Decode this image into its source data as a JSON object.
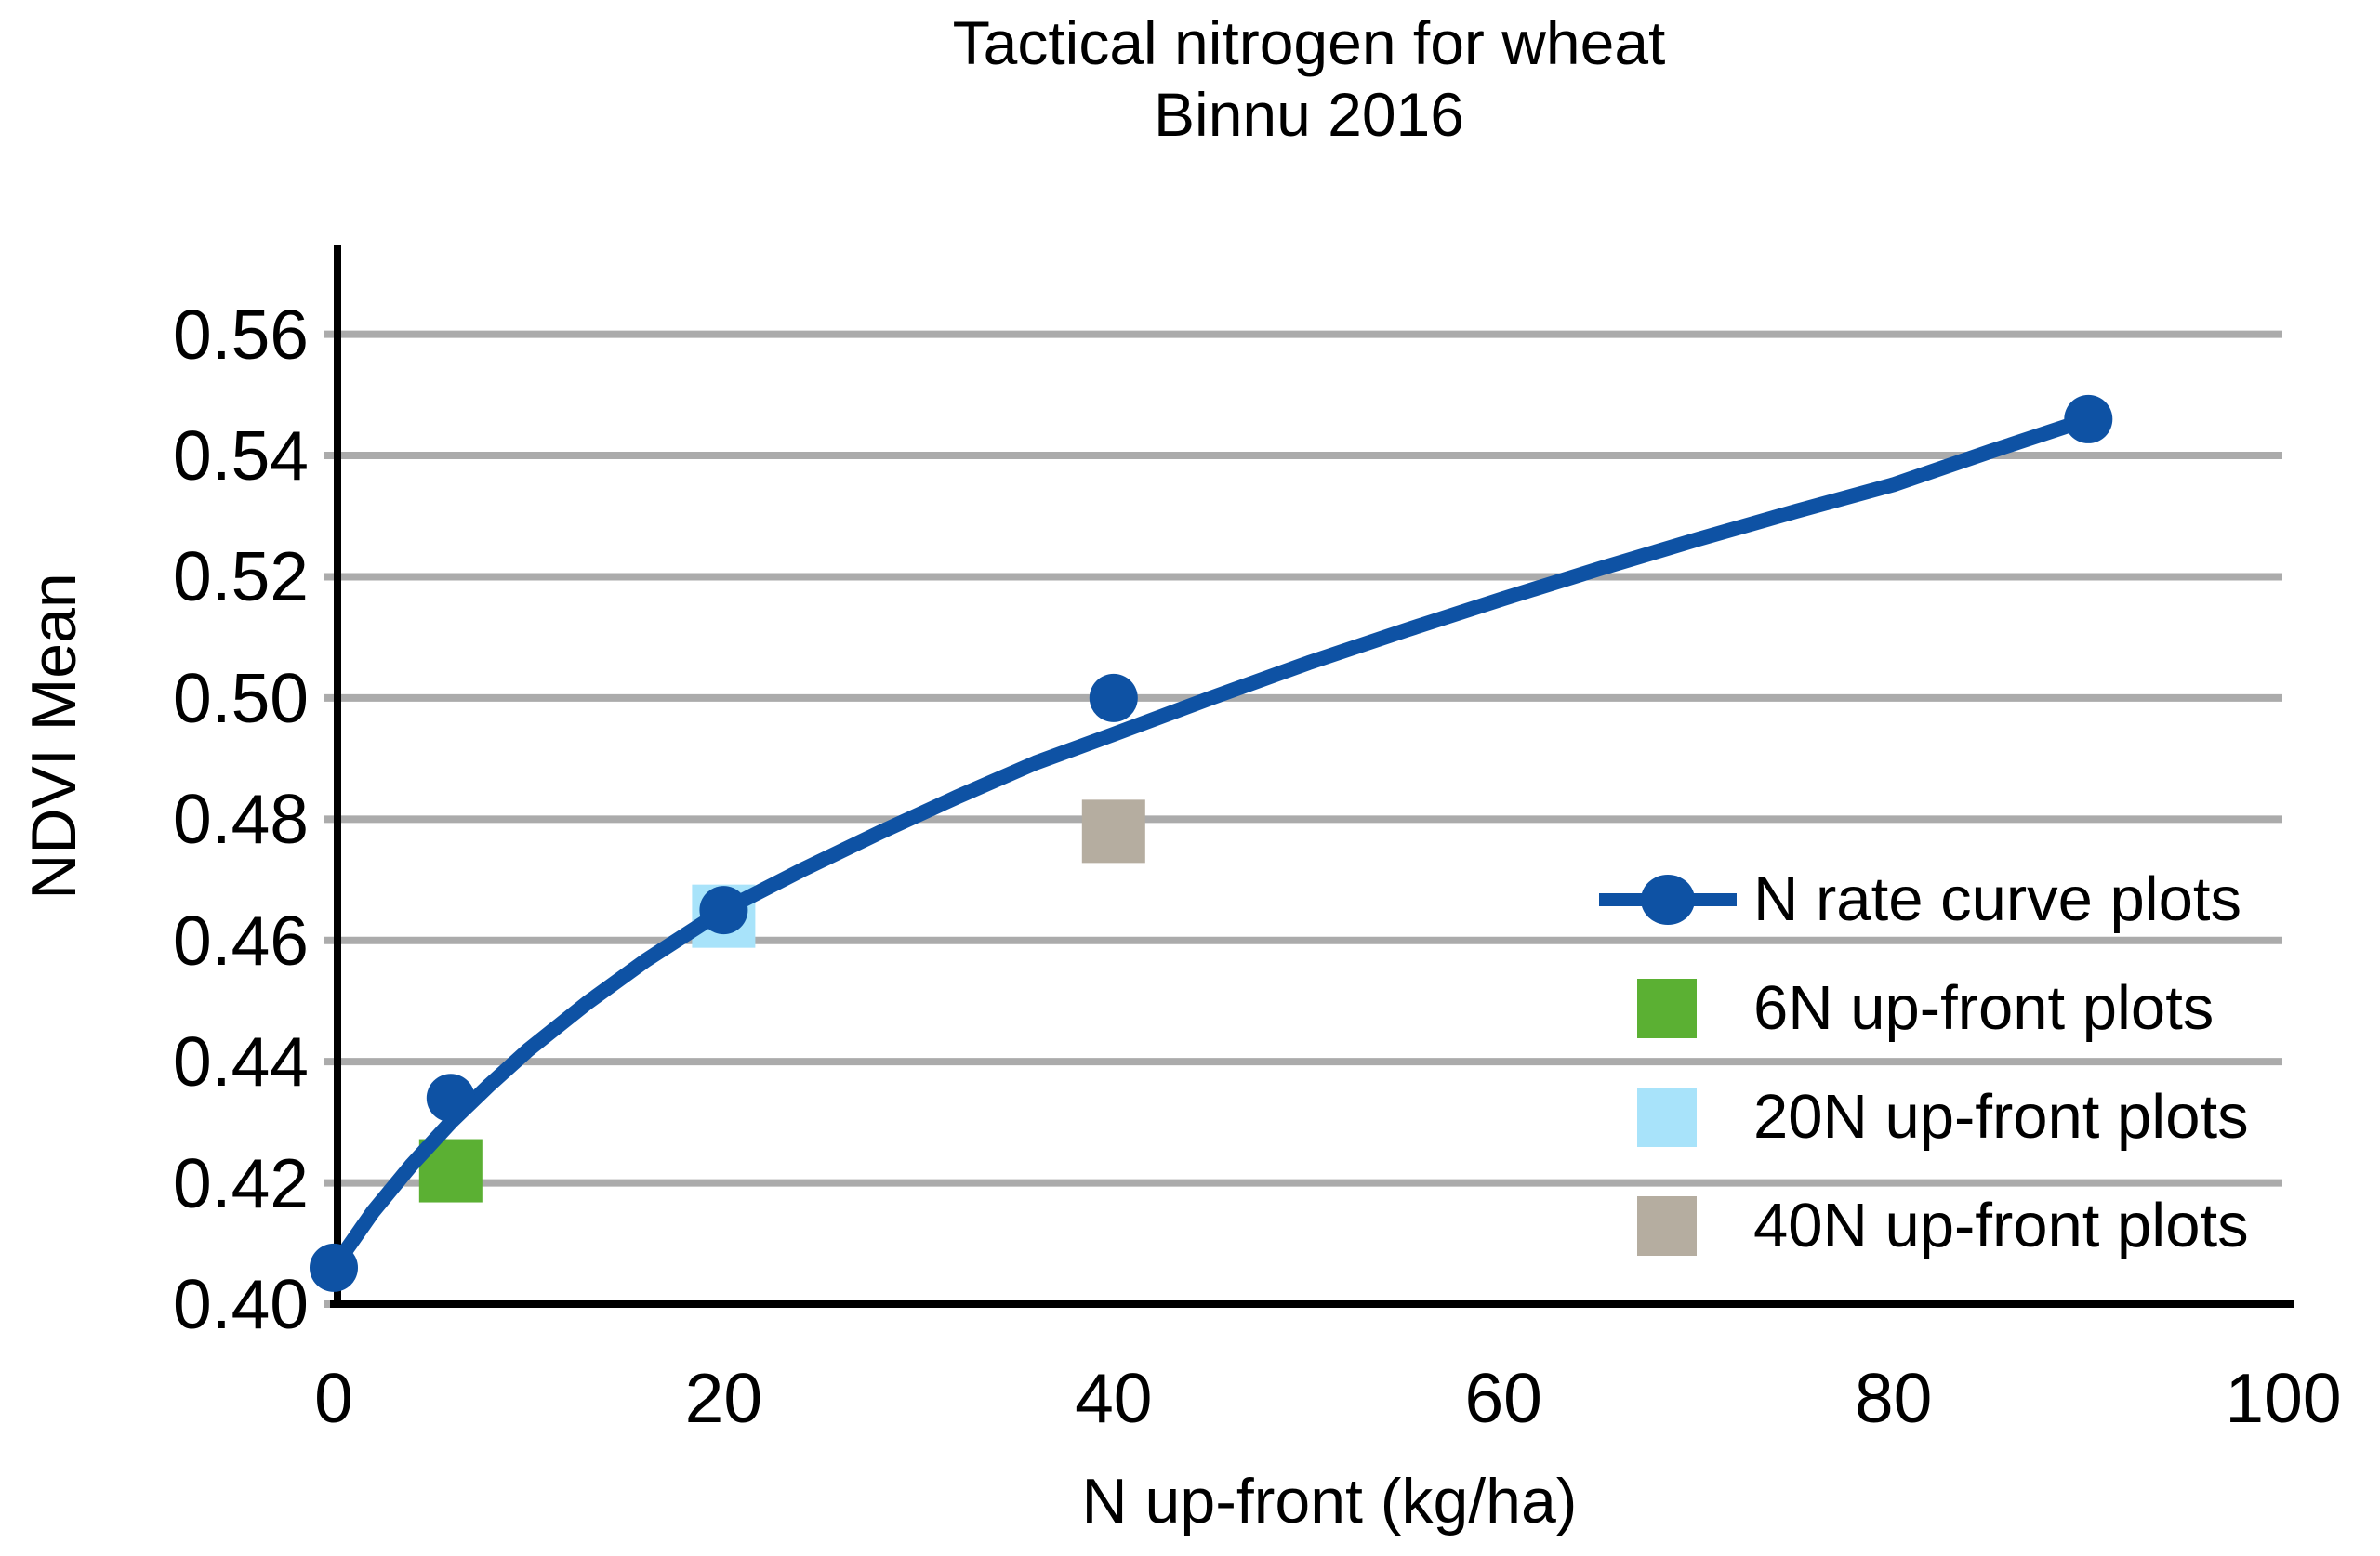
{
  "title": {
    "line1": "Tactical nitrogen for wheat",
    "line2": "Binnu 2016"
  },
  "chart_data": {
    "type": "scatter",
    "title": "Tactical nitrogen for wheat — Binnu 2016",
    "xlabel": "N up-front (kg/ha)",
    "ylabel": "NDVI Mean",
    "xlim": [
      0,
      100
    ],
    "ylim": [
      0.4,
      0.575
    ],
    "grid": "horizontal",
    "grid_color": "#ABABAB",
    "axis_color": "#000000",
    "legend_position": "inside-right",
    "x_ticks": [
      {
        "value": 0,
        "label": "0"
      },
      {
        "value": 20,
        "label": "20"
      },
      {
        "value": 40,
        "label": "40"
      },
      {
        "value": 60,
        "label": "60"
      },
      {
        "value": 80,
        "label": "80"
      },
      {
        "value": 100,
        "label": "100"
      }
    ],
    "y_ticks": [
      {
        "value": 0.4,
        "label": "0.40"
      },
      {
        "value": 0.42,
        "label": "0.42"
      },
      {
        "value": 0.44,
        "label": "0.44"
      },
      {
        "value": 0.46,
        "label": "0.46"
      },
      {
        "value": 0.48,
        "label": "0.48"
      },
      {
        "value": 0.5,
        "label": "0.50"
      },
      {
        "value": 0.52,
        "label": "0.52"
      },
      {
        "value": 0.54,
        "label": "0.54"
      },
      {
        "value": 0.56,
        "label": "0.56"
      }
    ],
    "series": [
      {
        "name": "N rate curve plots",
        "marker": "circle",
        "color": "#0E52A4",
        "points": [
          [
            0,
            0.406
          ],
          [
            6,
            0.434
          ],
          [
            20,
            0.465
          ],
          [
            40,
            0.5
          ],
          [
            90,
            0.546
          ]
        ],
        "fitted_curve": [
          [
            0,
            0.406
          ],
          [
            2,
            0.4152
          ],
          [
            4,
            0.423
          ],
          [
            6,
            0.43
          ],
          [
            8,
            0.4362
          ],
          [
            10,
            0.442
          ],
          [
            13,
            0.4497
          ],
          [
            16,
            0.4567
          ],
          [
            20,
            0.465
          ],
          [
            24,
            0.4716
          ],
          [
            28,
            0.4778
          ],
          [
            32,
            0.4837
          ],
          [
            36,
            0.4893
          ],
          [
            40,
            0.494
          ],
          [
            45,
            0.5
          ],
          [
            50,
            0.5058
          ],
          [
            55,
            0.5112
          ],
          [
            60,
            0.5164
          ],
          [
            65,
            0.5214
          ],
          [
            70,
            0.5262
          ],
          [
            75,
            0.5308
          ],
          [
            80,
            0.5352
          ],
          [
            85,
            0.5407
          ],
          [
            90,
            0.546
          ]
        ]
      },
      {
        "name": "6N up-front plots",
        "marker": "square",
        "color": "#5BB033",
        "points": [
          [
            6,
            0.422
          ]
        ]
      },
      {
        "name": "20N up-front plots",
        "marker": "square",
        "color": "#A8E3FA",
        "points": [
          [
            20,
            0.464
          ]
        ]
      },
      {
        "name": "40N up-front plots",
        "marker": "square",
        "color": "#B5ADA0",
        "points": [
          [
            40,
            0.478
          ]
        ]
      }
    ],
    "legend": [
      {
        "name": "N rate curve plots",
        "key": "line-circle",
        "color": "#0E52A4"
      },
      {
        "name": "6N up-front plots",
        "key": "square",
        "color": "#5BB033"
      },
      {
        "name": "20N up-front plots",
        "key": "square",
        "color": "#A8E3FA"
      },
      {
        "name": "40N up-front plots",
        "key": "square",
        "color": "#B5ADA0"
      }
    ]
  }
}
